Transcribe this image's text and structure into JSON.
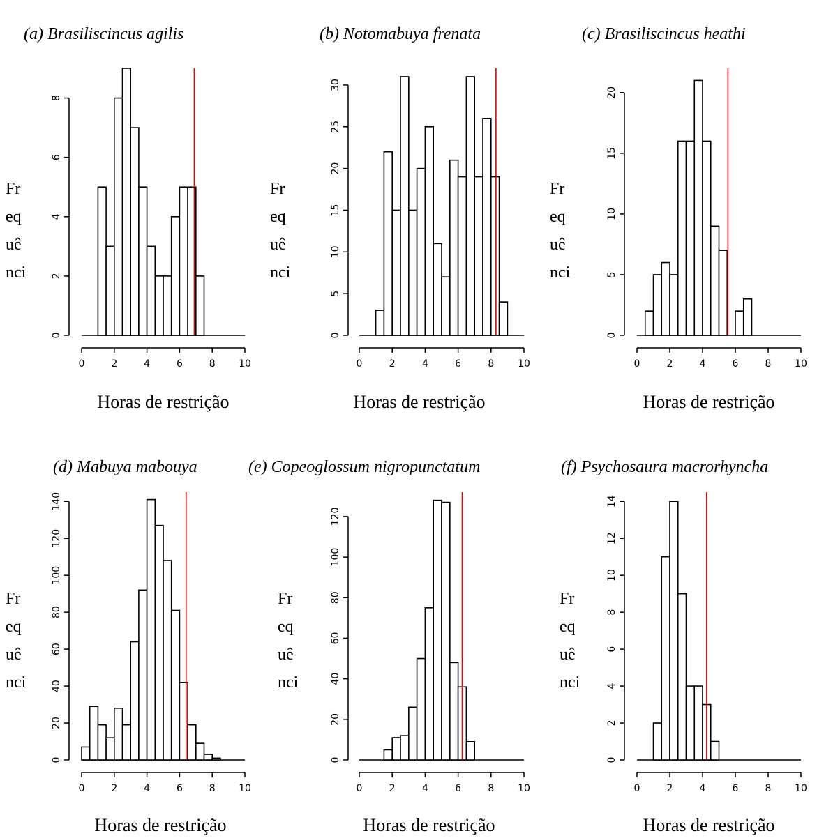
{
  "chart_data": [
    {
      "type": "bar",
      "title": "(a)  Brasiliscincus agilis",
      "xlabel": "Horas de restrição",
      "ylabel": [
        "Fr",
        "eq",
        "uê",
        "nci"
      ],
      "xlim": [
        0,
        10
      ],
      "ylim": [
        0,
        9
      ],
      "xticks": [
        0,
        2,
        4,
        6,
        8,
        10
      ],
      "yticks": [
        0,
        2,
        4,
        6,
        8
      ],
      "bin_width": 0.5,
      "bins_start": [
        1.0,
        1.5,
        2.0,
        2.5,
        3.0,
        3.5,
        4.0,
        4.5,
        5.0,
        5.5,
        6.0,
        6.5,
        7.0
      ],
      "values": [
        5,
        3,
        8,
        9,
        7,
        5,
        3,
        2,
        2,
        4,
        5,
        5,
        2
      ],
      "reference_line": 6.9
    },
    {
      "type": "bar",
      "title": "(b)  Notomabuya frenata",
      "xlabel": "Horas de restrição",
      "ylabel": [
        "Fr",
        "eq",
        "uê",
        "nci"
      ],
      "xlim": [
        0,
        10
      ],
      "ylim": [
        0,
        32
      ],
      "xticks": [
        0,
        2,
        4,
        6,
        8,
        10
      ],
      "yticks": [
        0,
        5,
        10,
        15,
        20,
        25,
        30
      ],
      "bin_width": 0.5,
      "bins_start": [
        1.0,
        1.5,
        2.0,
        2.5,
        3.0,
        3.5,
        4.0,
        4.5,
        5.0,
        5.5,
        6.0,
        6.5,
        7.0,
        7.5,
        8.0,
        8.5
      ],
      "values": [
        3,
        22,
        15,
        31,
        15,
        20,
        25,
        11,
        7,
        21,
        19,
        31,
        19,
        26,
        19,
        4
      ],
      "reference_line": 8.3
    },
    {
      "type": "bar",
      "title": "(c)  Brasiliscincus heathi",
      "xlabel": "Horas de restrição",
      "ylabel": [
        "Fr",
        "eq",
        "uê",
        "nci"
      ],
      "xlim": [
        0,
        10
      ],
      "ylim": [
        0,
        22
      ],
      "xticks": [
        0,
        2,
        4,
        6,
        8,
        10
      ],
      "yticks": [
        0,
        5,
        10,
        15,
        20
      ],
      "bin_width": 0.5,
      "bins_start": [
        0.5,
        1.0,
        1.5,
        2.0,
        2.5,
        3.0,
        3.5,
        4.0,
        4.5,
        5.0,
        5.5,
        6.0,
        6.5
      ],
      "values": [
        2,
        5,
        6,
        5,
        16,
        16,
        21,
        16,
        9,
        7,
        0,
        2,
        3
      ],
      "reference_line": 5.55
    },
    {
      "type": "bar",
      "title": "(d)  Mabuya mabouya",
      "xlabel": "Horas de restrição",
      "ylabel": [
        "Fr",
        "eq",
        "uê",
        "nci"
      ],
      "xlim": [
        0,
        10
      ],
      "ylim": [
        0,
        145
      ],
      "xticks": [
        0,
        2,
        4,
        6,
        8,
        10
      ],
      "yticks": [
        0,
        20,
        40,
        60,
        80,
        100,
        120,
        140
      ],
      "bin_width": 0.5,
      "bins_start": [
        0.0,
        0.5,
        1.0,
        1.5,
        2.0,
        2.5,
        3.0,
        3.5,
        4.0,
        4.5,
        5.0,
        5.5,
        6.0,
        6.5,
        7.0,
        7.5,
        8.0
      ],
      "values": [
        7,
        29,
        19,
        12,
        28,
        19,
        64,
        92,
        141,
        127,
        108,
        81,
        42,
        19,
        9,
        3,
        1
      ],
      "reference_line": 6.4
    },
    {
      "type": "bar",
      "title": "(e)  Copeoglossum nigropunctatum",
      "xlabel": "Horas de restrição",
      "ylabel": [
        "Fr",
        "eq",
        "uê",
        "nci"
      ],
      "xlim": [
        0,
        10
      ],
      "ylim": [
        0,
        132
      ],
      "xticks": [
        0,
        2,
        4,
        6,
        8,
        10
      ],
      "yticks": [
        0,
        20,
        40,
        60,
        80,
        100,
        120
      ],
      "bin_width": 0.5,
      "bins_start": [
        1.5,
        2.0,
        2.5,
        3.0,
        3.5,
        4.0,
        4.5,
        5.0,
        5.5,
        6.0,
        6.5
      ],
      "values": [
        5,
        11,
        12,
        26,
        50,
        75,
        128,
        127,
        48,
        36,
        9
      ],
      "reference_line": 6.25
    },
    {
      "type": "bar",
      "title": "(f)  Psychosaura macrorhyncha",
      "xlabel": "Horas de restrição",
      "ylabel": [
        "Fr",
        "eq",
        "uê",
        "nci"
      ],
      "xlim": [
        0,
        10
      ],
      "ylim": [
        0,
        14.5
      ],
      "xticks": [
        0,
        2,
        4,
        6,
        8,
        10
      ],
      "yticks": [
        0,
        2,
        4,
        6,
        8,
        10,
        12,
        14
      ],
      "bin_width": 0.5,
      "bins_start": [
        1.0,
        1.5,
        2.0,
        2.5,
        3.0,
        3.5,
        4.0,
        4.5
      ],
      "values": [
        2,
        11,
        14,
        9,
        4,
        4,
        3,
        1
      ],
      "reference_line": 4.25
    }
  ],
  "colors": {
    "bar_fill": "#ffffff",
    "bar_stroke": "#000000",
    "reference_line": "#e00000"
  }
}
